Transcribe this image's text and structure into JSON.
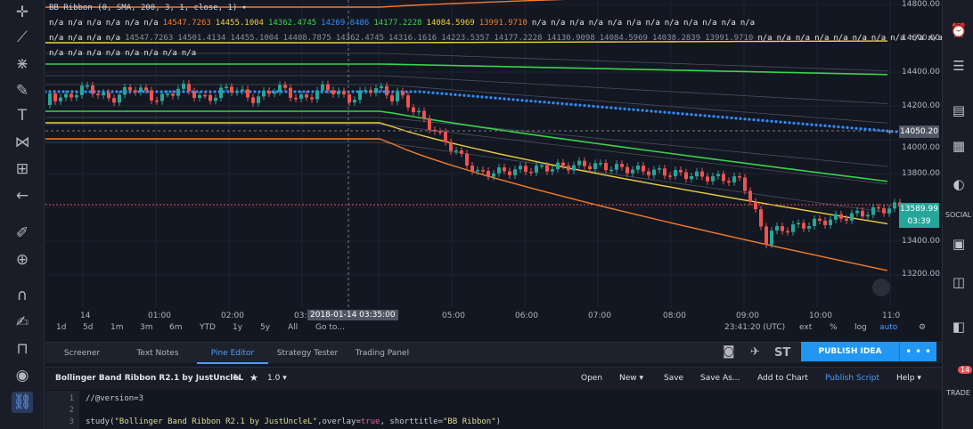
{
  "legend": {
    "title": "BB Ribbon (0, SMA, 200, 3, 1, close, 1)",
    "row1": [
      {
        "text": "n/a",
        "color": "#e6e6e6"
      },
      {
        "text": "n/a",
        "color": "#e6e6e6"
      },
      {
        "text": "n/a",
        "color": "#e6e6e6"
      },
      {
        "text": "n/a",
        "color": "#e6e6e6"
      },
      {
        "text": "n/a",
        "color": "#e6e6e6"
      },
      {
        "text": "n/a",
        "color": "#e6e6e6"
      },
      {
        "text": "14547.7263",
        "color": "#f57c2a"
      },
      {
        "text": "14455.1004",
        "color": "#f0d040"
      },
      {
        "text": "14362.4745",
        "color": "#3ad34a"
      },
      {
        "text": "14269.8486",
        "color": "#2f8cff"
      },
      {
        "text": "14177.2228",
        "color": "#3ad34a"
      },
      {
        "text": "14084.5969",
        "color": "#f0d040"
      },
      {
        "text": "13991.9710",
        "color": "#f57c2a"
      },
      {
        "text": "n/a",
        "color": "#e6e6e6"
      },
      {
        "text": "n/a",
        "color": "#e6e6e6"
      },
      {
        "text": "n/a",
        "color": "#e6e6e6"
      },
      {
        "text": "n/a",
        "color": "#e6e6e6"
      },
      {
        "text": "n/a",
        "color": "#e6e6e6"
      },
      {
        "text": "n/a",
        "color": "#e6e6e6"
      },
      {
        "text": "n/a",
        "color": "#e6e6e6"
      },
      {
        "text": "n/a",
        "color": "#e6e6e6"
      },
      {
        "text": "n/a",
        "color": "#e6e6e6"
      },
      {
        "text": "n/a",
        "color": "#e6e6e6"
      },
      {
        "text": "n/a",
        "color": "#e6e6e6"
      },
      {
        "text": "n/a",
        "color": "#e6e6e6"
      }
    ],
    "row2": [
      {
        "text": "n/a",
        "color": "#e6e6e6"
      },
      {
        "text": "n/a",
        "color": "#e6e6e6"
      },
      {
        "text": "n/a",
        "color": "#e6e6e6"
      },
      {
        "text": "n/a",
        "color": "#e6e6e6"
      },
      {
        "text": "14547.7263",
        "color": "#8a8e99"
      },
      {
        "text": "14501.4134",
        "color": "#8a8e99"
      },
      {
        "text": "14455.1004",
        "color": "#8a8e99"
      },
      {
        "text": "14408.7875",
        "color": "#8a8e99"
      },
      {
        "text": "14362.4745",
        "color": "#8a8e99"
      },
      {
        "text": "14316.1616",
        "color": "#8a8e99"
      },
      {
        "text": "14223.5357",
        "color": "#8a8e99"
      },
      {
        "text": "14177.2228",
        "color": "#8a8e99"
      },
      {
        "text": "14130.9098",
        "color": "#8a8e99"
      },
      {
        "text": "14084.5969",
        "color": "#8a8e99"
      },
      {
        "text": "14038.2839",
        "color": "#8a8e99"
      },
      {
        "text": "13991.9710",
        "color": "#8a8e99"
      },
      {
        "text": "n/a",
        "color": "#e6e6e6"
      },
      {
        "text": "n/a",
        "color": "#e6e6e6"
      },
      {
        "text": "n/a",
        "color": "#e6e6e6"
      },
      {
        "text": "n/a",
        "color": "#e6e6e6"
      },
      {
        "text": "n/a",
        "color": "#e6e6e6"
      },
      {
        "text": "n/a",
        "color": "#e6e6e6"
      },
      {
        "text": "n/a",
        "color": "#e6e6e6"
      },
      {
        "text": "n/a",
        "color": "#e6e6e6"
      },
      {
        "text": "n/a",
        "color": "#e6e6e6"
      },
      {
        "text": "n/a",
        "color": "#e6e6e6"
      },
      {
        "text": "n/a",
        "color": "#e6e6e6"
      }
    ],
    "row3": [
      {
        "text": "n/a",
        "color": "#e6e6e6"
      },
      {
        "text": "n/a",
        "color": "#e6e6e6"
      },
      {
        "text": "n/a",
        "color": "#e6e6e6"
      },
      {
        "text": "n/a",
        "color": "#e6e6e6"
      },
      {
        "text": "n/a",
        "color": "#e6e6e6"
      },
      {
        "text": "n/a",
        "color": "#e6e6e6"
      },
      {
        "text": "n/a",
        "color": "#e6e6e6"
      },
      {
        "text": "n/a",
        "color": "#e6e6e6"
      }
    ]
  },
  "price_axis": {
    "labels": [
      "14800.00",
      "14600.00",
      "14400.00",
      "14200.00",
      "14000.00",
      "13800.00",
      "13600.00",
      "13400.00",
      "13200.00"
    ],
    "crosshair_price": "14050.20",
    "last_price": "13589.99",
    "countdown": "03:39"
  },
  "time_axis": {
    "labels": [
      "14",
      "01:00",
      "02:00",
      "03:00",
      "05:00",
      "06:00",
      "07:00",
      "08:00",
      "09:00",
      "10:00",
      "11:0"
    ],
    "crosshair_time": "2018-01-14 03:35:00"
  },
  "ranges": [
    "1d",
    "5d",
    "1m",
    "3m",
    "6m",
    "YTD",
    "1y",
    "5y",
    "All",
    "Go to..."
  ],
  "bottom_right": {
    "time": "23:41:20 (UTC)",
    "ext": "ext",
    "pct": "%",
    "log": "log",
    "auto": "auto"
  },
  "panel_tabs": [
    "Screener",
    "Text Notes",
    "Pine Editor",
    "Strategy Tester",
    "Trading Panel"
  ],
  "share_icons": {
    "st": "ST"
  },
  "publish": "PUBLISH IDEA",
  "more": "• • •",
  "editor": {
    "title": "Bollinger Band Ribbon R2.1 by JustUncleL",
    "version": "1.0",
    "actions": [
      "Open",
      "New",
      "Save",
      "Save As...",
      "Add to Chart",
      "Publish Script",
      "Help"
    ]
  },
  "code": {
    "line1": "//@version=3",
    "line3_fn": "study(",
    "line3_str1": "\"Bollinger Band Ribbon R2.1 by JustUncleL\"",
    "line3_mid": ",overlay=",
    "line3_kw": "true",
    "line3_mid2": ", shorttitle=",
    "line3_str2": "\"BB Ribbon\"",
    "line3_end": ")"
  },
  "right_toolbar": {
    "social": "SOCIAL",
    "trade": "TRADE",
    "badge": "14"
  },
  "colors": {
    "bg": "#131722",
    "up": "#26a69a",
    "down": "#ef5350",
    "accent": "#2196f3"
  }
}
